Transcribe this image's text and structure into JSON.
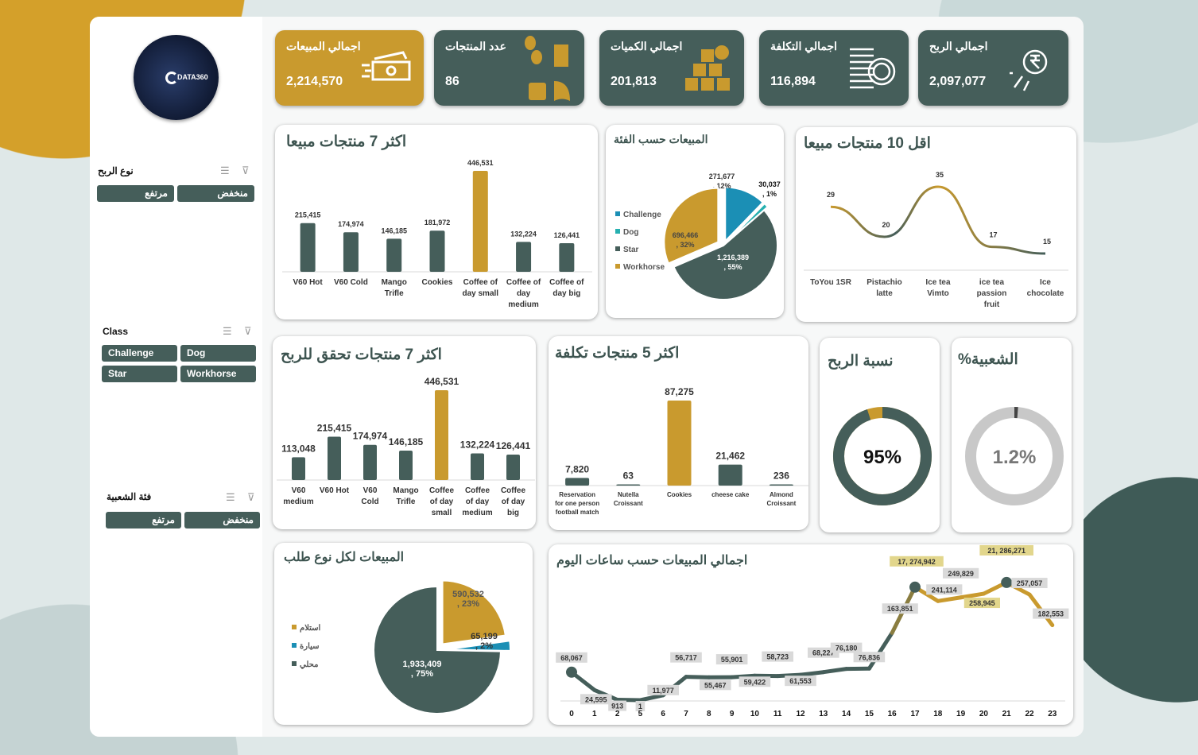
{
  "colors": {
    "dark": "#455e5a",
    "gold": "#c99a2e",
    "blue": "#1b8fb5",
    "teal": "#26b0b0",
    "grey": "#c8c8c8"
  },
  "logo": {
    "text": "DATA360"
  },
  "slicers": [
    {
      "title": "نوع الربح",
      "items": [
        "مرتفع",
        "منخفض"
      ]
    },
    {
      "title": "Class",
      "items": [
        "Challenge",
        "Dog",
        "Star",
        "Workhorse"
      ]
    },
    {
      "title": "فئة الشعبية",
      "items": [
        "مرتفع",
        "منخفض"
      ]
    }
  ],
  "kpis": [
    {
      "title": "اجمالي المبيعات",
      "value": "2,214,570",
      "icon": "cash-icon"
    },
    {
      "title": "عدد المنتجات",
      "value": "86",
      "icon": "coffee-products-icon"
    },
    {
      "title": "اجمالي الكميات",
      "value": "201,813",
      "icon": "boxes-icon"
    },
    {
      "title": "اجمالي التكلفة",
      "value": "116,894",
      "icon": "coins-icon"
    },
    {
      "title": "اجمالي الربح",
      "value": "2,097,077",
      "icon": "rupee-icon"
    }
  ],
  "charts": {
    "top7_sales": {
      "title": "اكثر 7 منتجات مبيعا"
    },
    "by_class": {
      "title": "المبيعات حسب الفئة"
    },
    "bottom10": {
      "title": "اقل 10 منتجات مبيعا"
    },
    "top7_profit": {
      "title": "اكثر 7 منتجات تحقق للربح"
    },
    "top5_cost": {
      "title": "اكثر 5 منتجات تكلفة"
    },
    "profit_ratio": {
      "title": "نسبة الربح"
    },
    "popularity": {
      "title": "الشعبية%"
    },
    "order_type": {
      "title": "المبيعات لكل نوع طلب"
    },
    "hourly": {
      "title": "اجمالي المبيعات حسب ساعات اليوم"
    }
  },
  "chart_data": [
    {
      "id": "top7_sales",
      "type": "bar",
      "categories": [
        "V60 Hot",
        "V60 Cold",
        "Mango Trifle",
        "Cookies",
        "Coffee of day small",
        "Coffee of day medium",
        "Coffee of day big"
      ],
      "values": [
        215415,
        174974,
        146185,
        181972,
        446531,
        132224,
        126441
      ],
      "labels": [
        "215,415",
        "174,974",
        "146,185",
        "181,972",
        "446,531",
        "132,224",
        "126,441"
      ]
    },
    {
      "id": "by_class",
      "type": "pie",
      "categories": [
        "Challenge",
        "Dog",
        "Star",
        "Workhorse"
      ],
      "values": [
        271677,
        30037,
        1216389,
        696466
      ],
      "labels": [
        "271,677 , 12%",
        "30,037 , 1%",
        "1,216,389 , 55%",
        "696,466 , 32%"
      ],
      "legend": "left"
    },
    {
      "id": "bottom10",
      "type": "line",
      "categories": [
        "ToYou 1SR",
        "Pistachio latte",
        "Ice tea Vimto",
        "ice tea passion fruit",
        "Ice chocolate"
      ],
      "values": [
        29,
        20,
        35,
        17,
        15
      ],
      "labels": [
        "29",
        "20",
        "35",
        "17",
        "15"
      ]
    },
    {
      "id": "top7_profit",
      "type": "bar",
      "categories": [
        "V60 medium",
        "V60 Hot",
        "V60 Cold",
        "Mango Trifle",
        "Coffee of day small",
        "Coffee of day medium",
        "Coffee of day big"
      ],
      "values": [
        113048,
        215415,
        174974,
        146185,
        446531,
        132224,
        126441
      ],
      "labels": [
        "113,048",
        "215,415",
        "174,974",
        "146,185",
        "446,531",
        "132,224",
        "126,441"
      ]
    },
    {
      "id": "top5_cost",
      "type": "bar",
      "categories": [
        "Reservation for one person football match",
        "Nutella Croissant",
        "Cookies",
        "cheese cake",
        "Almond Croissant"
      ],
      "values": [
        7820,
        63,
        87275,
        21462,
        236
      ],
      "labels": [
        "7,820",
        "63",
        "87,275",
        "21,462",
        "236"
      ]
    },
    {
      "id": "profit_ratio",
      "type": "pie",
      "values": [
        95
      ],
      "label": "95%"
    },
    {
      "id": "popularity",
      "type": "pie",
      "values": [
        1.2
      ],
      "label": "1.2%"
    },
    {
      "id": "order_type",
      "type": "pie",
      "categories": [
        "استلام",
        "سيارة",
        "محلي"
      ],
      "values": [
        590532,
        65199,
        1933409
      ],
      "labels": [
        "590,532 , 23%",
        "65,199 , 2%",
        "1,933,409 , 75%"
      ],
      "legend": "left"
    },
    {
      "id": "hourly",
      "type": "line",
      "x": [
        "0",
        "1",
        "2",
        "5",
        "6",
        "7",
        "8",
        "9",
        "10",
        "11",
        "12",
        "13",
        "14",
        "15",
        "16",
        "17",
        "18",
        "19",
        "20",
        "21",
        "22",
        "23"
      ],
      "values": [
        68067,
        24595,
        913,
        1,
        11977,
        56717,
        55467,
        55901,
        59422,
        58723,
        61553,
        68227,
        76180,
        76836,
        163851,
        274942,
        241114,
        249829,
        258945,
        286271,
        257057,
        182553
      ],
      "labels": [
        "68,067",
        "24,595",
        "913",
        "1",
        "11,977",
        "56,717",
        "55,467",
        "55,901",
        "59,422",
        "58,723",
        "61,553",
        "68,227",
        "76,180",
        "76,836",
        "163,851",
        "17, 274,942",
        "241,114",
        "249,829",
        "258,945",
        "21, 286,271",
        "257,057",
        "182,553"
      ]
    }
  ]
}
